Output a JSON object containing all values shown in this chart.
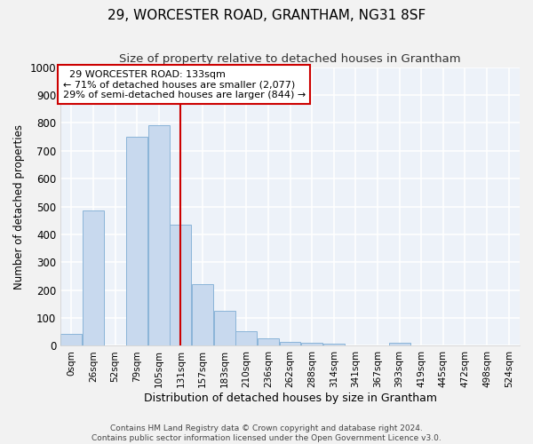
{
  "title": "29, WORCESTER ROAD, GRANTHAM, NG31 8SF",
  "subtitle": "Size of property relative to detached houses in Grantham",
  "xlabel": "Distribution of detached houses by size in Grantham",
  "ylabel": "Number of detached properties",
  "bar_color": "#c8d9ee",
  "bar_edge_color": "#8ab4d8",
  "vline_color": "#cc0000",
  "vline_x": 5,
  "categories": [
    "0sqm",
    "26sqm",
    "52sqm",
    "79sqm",
    "105sqm",
    "131sqm",
    "157sqm",
    "183sqm",
    "210sqm",
    "236sqm",
    "262sqm",
    "288sqm",
    "314sqm",
    "341sqm",
    "367sqm",
    "393sqm",
    "419sqm",
    "445sqm",
    "472sqm",
    "498sqm",
    "524sqm"
  ],
  "values": [
    42,
    485,
    0,
    750,
    790,
    435,
    220,
    127,
    52,
    27,
    14,
    12,
    8,
    0,
    0,
    12,
    0,
    0,
    0,
    0,
    0
  ],
  "ylim": [
    0,
    1000
  ],
  "yticks": [
    0,
    100,
    200,
    300,
    400,
    500,
    600,
    700,
    800,
    900,
    1000
  ],
  "annotation_title": "29 WORCESTER ROAD: 133sqm",
  "annotation_line1": "← 71% of detached houses are smaller (2,077)",
  "annotation_line2": "29% of semi-detached houses are larger (844) →",
  "annotation_box_color": "#ffffff",
  "annotation_box_edge": "#cc0000",
  "bg_color": "#edf2f9",
  "grid_color": "#ffffff",
  "footer1": "Contains HM Land Registry data © Crown copyright and database right 2024.",
  "footer2": "Contains public sector information licensed under the Open Government Licence v3.0.",
  "title_fontsize": 11,
  "subtitle_fontsize": 9.5
}
